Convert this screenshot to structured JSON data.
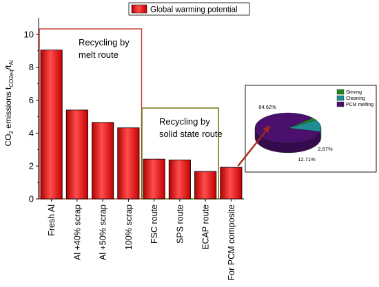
{
  "chart_data": [
    {
      "type": "bar",
      "legend": {
        "label": "Global warming potential",
        "placement": "top-center"
      },
      "ylabel": {
        "base": "CO",
        "sub2": "2",
        "mid": " emissions t",
        "sub_eq": "CO2eq",
        "slash": "/t",
        "sub_al": "Al"
      },
      "ylim": [
        0,
        11
      ],
      "yticks": [
        0,
        2,
        4,
        6,
        8,
        10
      ],
      "categories": [
        "Fresh  Al",
        "Al +40% scrap",
        "Al +50% scrap",
        "100% scrap",
        "FSC route",
        "SPS route",
        "ECAP route",
        "For PCM composite"
      ],
      "values": [
        9.05,
        5.4,
        4.65,
        4.32,
        2.42,
        2.37,
        1.67,
        1.92
      ],
      "bar_color": "#ff0000",
      "groups": [
        {
          "label_lines": [
            "Recycling by",
            "melt route"
          ],
          "color": "#c0392b",
          "first": 0,
          "last": 3
        },
        {
          "label_lines": [
            "Recycling by",
            "solid state route"
          ],
          "color": "#6b6b00",
          "first": 4,
          "last": 6
        }
      ]
    },
    {
      "type": "pie",
      "labels": [
        "Sieving",
        "Cleaning",
        "PCM melting"
      ],
      "values": [
        2.67,
        12.71,
        84.62
      ],
      "value_labels": [
        "2.67%",
        "12.71%",
        "84.62%"
      ],
      "colors": [
        "#1a8a1a",
        "#1f8c94",
        "#4b0f6e"
      ]
    }
  ]
}
